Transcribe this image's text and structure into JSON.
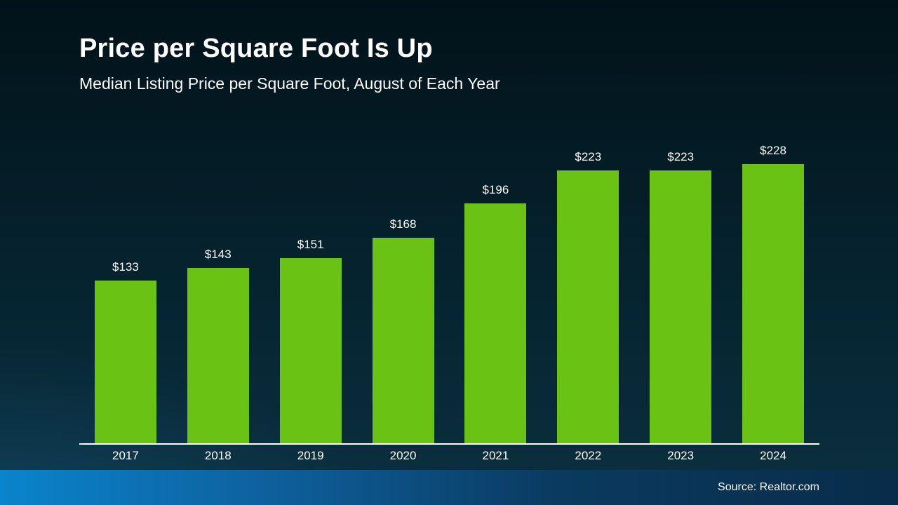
{
  "header": {
    "title": "Price per Square Foot Is Up",
    "subtitle": "Median Listing Price per Square Foot, August of Each Year"
  },
  "footer": {
    "source": "Source: Realtor.com"
  },
  "colors": {
    "bar": "#69c214",
    "background_top": "#021219",
    "background_bottom": "#0b3040",
    "footer_blue_left": "#0a84cc",
    "footer_blue_right": "#082c49",
    "axis": "#ffffff",
    "text": "#ffffff"
  },
  "chart_data": {
    "type": "bar",
    "title": "Price per Square Foot Is Up",
    "subtitle": "Median Listing Price per Square Foot, August of Each Year",
    "categories": [
      "2017",
      "2018",
      "2019",
      "2020",
      "2021",
      "2022",
      "2023",
      "2024"
    ],
    "values": [
      133,
      143,
      151,
      168,
      196,
      223,
      223,
      228
    ],
    "value_labels": [
      "$133",
      "$143",
      "$151",
      "$168",
      "$196",
      "$223",
      "$223",
      "$228"
    ],
    "xlabel": "",
    "ylabel": "",
    "ylim": [
      0,
      260
    ],
    "grid": false,
    "legend": "none",
    "bar_color": "#69c214",
    "source": "Source: Realtor.com"
  }
}
